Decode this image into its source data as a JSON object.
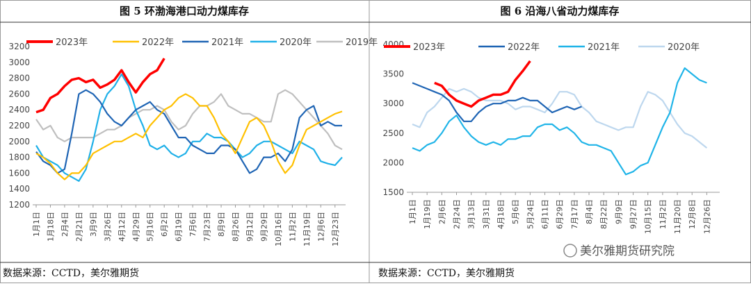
{
  "chart_data": [
    {
      "type": "line",
      "title": "图 5 环渤海港口动力煤库存",
      "source": "数据来源：CCTD，美尔雅期货",
      "categories": [
        "1月1日",
        null,
        "1月18日",
        null,
        "2月4日",
        null,
        "2月21日",
        null,
        "3月9日",
        null,
        "3月26日",
        null,
        "4月12日",
        null,
        "4月29日",
        null,
        "5月16日",
        null,
        "6月2日",
        null,
        "6月19日",
        null,
        "7月6日",
        null,
        "7月23日",
        null,
        "8月9日",
        null,
        "8月26日",
        null,
        "9月12日",
        null,
        "9月29日",
        null,
        "10月16日",
        null,
        "11月2日",
        null,
        "11月19日",
        null,
        "12月6日",
        null,
        "12月23日",
        null
      ],
      "ylim": [
        1200,
        3200
      ],
      "yticks": [
        1200,
        1400,
        1600,
        1800,
        2000,
        2200,
        2400,
        2600,
        2800,
        3000,
        3200
      ],
      "series": [
        {
          "name": "2023年",
          "color": "#ff0000",
          "values": [
            2370,
            2400,
            2550,
            2600,
            2700,
            2780,
            2800,
            2750,
            2780,
            2680,
            2720,
            2780,
            2900,
            2750,
            2620,
            2750,
            2850,
            2900,
            3050,
            null,
            null,
            null,
            null,
            null,
            null,
            null,
            null,
            null,
            null,
            null,
            null,
            null,
            null,
            null,
            null,
            null,
            null,
            null,
            null,
            null,
            null,
            null,
            null,
            null
          ]
        },
        {
          "name": "2022年",
          "color": "#ffc000",
          "values": [
            1850,
            1800,
            1720,
            1600,
            1520,
            1600,
            1600,
            1700,
            1850,
            1900,
            1950,
            2000,
            2000,
            2050,
            2100,
            2050,
            2200,
            2300,
            2400,
            2450,
            2550,
            2600,
            2550,
            2450,
            2450,
            2300,
            2100,
            2000,
            1850,
            2050,
            2250,
            2300,
            2200,
            2000,
            1750,
            1600,
            1700,
            1950,
            2150,
            2200,
            2250,
            2300,
            2350,
            2380
          ]
        },
        {
          "name": "2021年",
          "color": "#1e64b4",
          "values": [
            1870,
            1750,
            1700,
            1600,
            1650,
            2100,
            2600,
            2650,
            2600,
            2500,
            2350,
            2250,
            2200,
            2300,
            2400,
            2450,
            2500,
            2400,
            2350,
            2200,
            2050,
            2050,
            1950,
            1900,
            1850,
            1850,
            1950,
            1950,
            1900,
            1750,
            1600,
            1650,
            1800,
            1800,
            1850,
            1750,
            1900,
            2300,
            2400,
            2450,
            2200,
            2250,
            2200,
            2200
          ]
        },
        {
          "name": "2020年",
          "color": "#1fb0e8",
          "values": [
            1950,
            1800,
            1750,
            1700,
            1600,
            1550,
            1500,
            1650,
            2000,
            2400,
            2600,
            2700,
            2850,
            2700,
            2400,
            2200,
            1950,
            1900,
            1950,
            1850,
            1800,
            1850,
            2000,
            2000,
            2100,
            2050,
            2050,
            2000,
            1900,
            1800,
            1850,
            1950,
            2000,
            2000,
            1950,
            1900,
            1850,
            2000,
            1950,
            1900,
            1750,
            1720,
            1700,
            1800
          ]
        },
        {
          "name": "2019年",
          "color": "#bfbfbf",
          "values": [
            2280,
            2150,
            2200,
            2050,
            2000,
            2050,
            2050,
            2050,
            2050,
            2100,
            2150,
            2150,
            2200,
            2300,
            2350,
            2400,
            2400,
            2450,
            2400,
            2250,
            2150,
            2200,
            2350,
            2450,
            2450,
            2500,
            2600,
            2450,
            2400,
            2350,
            2350,
            2300,
            2250,
            2250,
            2600,
            2650,
            2600,
            2500,
            2400,
            2300,
            2200,
            2100,
            1950,
            1900
          ]
        }
      ]
    },
    {
      "type": "line",
      "title": "图 6 沿海八省动力煤库存",
      "source": "数据来源：CCTD，美尔雅期货",
      "categories": [
        "1月1日",
        null,
        "1月19日",
        null,
        "2月6日",
        null,
        "2月24日",
        null,
        "3月13日",
        null,
        "3月31日",
        null,
        "4月18日",
        null,
        "5月6日",
        null,
        "5月24日",
        null,
        "6月11日",
        null,
        "6月29日",
        null,
        "7月17日",
        null,
        "8月4日",
        null,
        "8月22日",
        null,
        "9月9日",
        null,
        "9月27日",
        null,
        "10月15日",
        null,
        "11月2日",
        null,
        "11月20日",
        null,
        "12月8日",
        null,
        "12月26日",
        null
      ],
      "ylim": [
        1500,
        4000
      ],
      "yticks": [
        1500,
        2000,
        2500,
        3000,
        3500,
        4000
      ],
      "series": [
        {
          "name": "2023年",
          "color": "#ff0000",
          "values": [
            null,
            null,
            null,
            3350,
            3300,
            3150,
            3050,
            3000,
            2950,
            3050,
            3100,
            3150,
            3150,
            3200,
            3400,
            3550,
            3720,
            null,
            null,
            null,
            null,
            null,
            null,
            null,
            null,
            null,
            null,
            null,
            null,
            null,
            null,
            null,
            null,
            null,
            null,
            null,
            null,
            null,
            null,
            null,
            null,
            null
          ]
        },
        {
          "name": "2022年",
          "color": "#1e64b4",
          "values": [
            3350,
            3300,
            3250,
            3200,
            3150,
            3050,
            2850,
            2700,
            2700,
            2850,
            2950,
            3000,
            3000,
            3050,
            3050,
            3100,
            3050,
            3050,
            2950,
            2850,
            2900,
            2950,
            2900,
            2950,
            null,
            null,
            null,
            null,
            null,
            null,
            null,
            null,
            null,
            null,
            null,
            null,
            null,
            null,
            null,
            null,
            null,
            null
          ]
        },
        {
          "name": "2021年",
          "color": "#1fb4e8",
          "values": [
            2250,
            2200,
            2300,
            2350,
            2500,
            2700,
            2800,
            2600,
            2450,
            2350,
            2300,
            2350,
            2300,
            2400,
            2400,
            2450,
            2450,
            2600,
            2650,
            2650,
            2550,
            2600,
            2500,
            2350,
            2300,
            2300,
            2250,
            2200,
            2000,
            1800,
            1850,
            1950,
            2000,
            2300,
            2600,
            2850,
            3350,
            3600,
            3500,
            3400,
            3350,
            null
          ]
        },
        {
          "name": "2020年",
          "color": "#bdd7ee",
          "values": [
            2650,
            2600,
            2850,
            2950,
            3100,
            3250,
            3200,
            3250,
            3200,
            3100,
            3050,
            3050,
            3050,
            3000,
            2900,
            2950,
            2950,
            2900,
            2850,
            3000,
            3200,
            3200,
            3150,
            2950,
            2850,
            2700,
            2650,
            2600,
            2550,
            2600,
            2600,
            2950,
            3200,
            3150,
            3050,
            2850,
            2650,
            2500,
            2450,
            2350,
            2250,
            null
          ]
        }
      ]
    }
  ],
  "watermark": "美尔雅期货研究院"
}
